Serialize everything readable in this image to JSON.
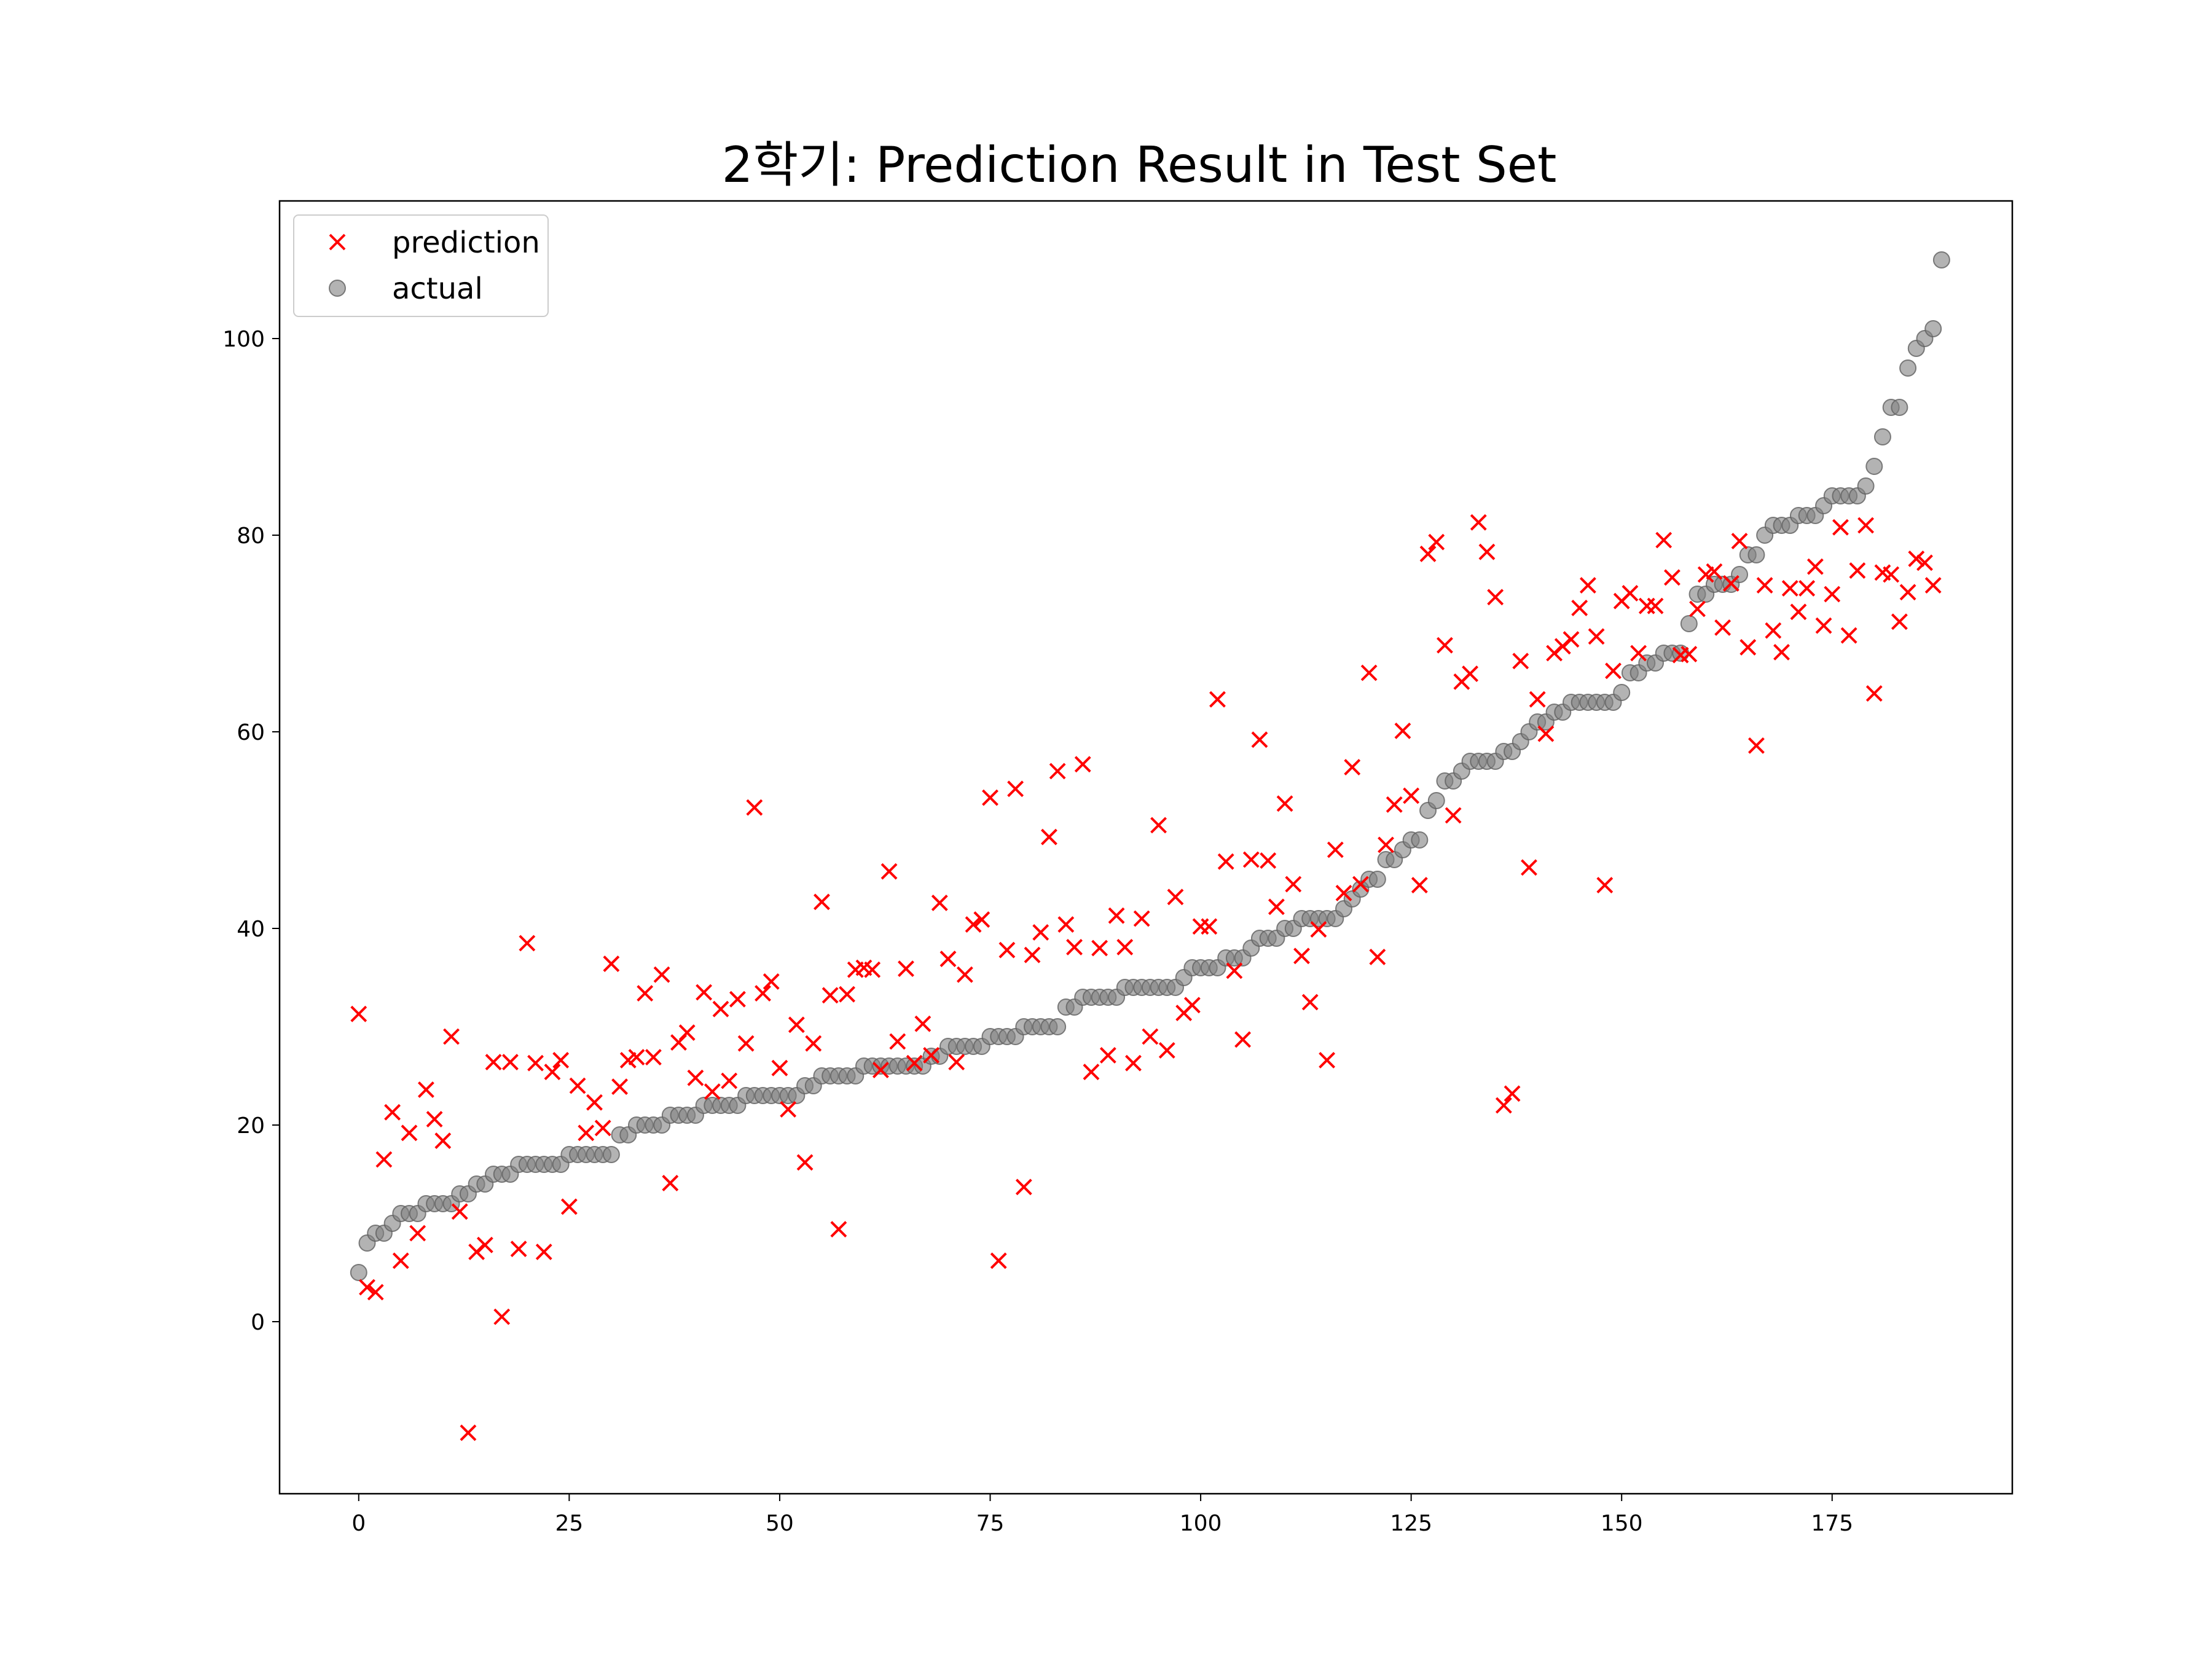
{
  "chart_data": {
    "type": "scatter",
    "title": "2학기: Prediction Result in Test Set",
    "xlabel": "",
    "ylabel": "",
    "xlim": [
      -9.4,
      196.4
    ],
    "ylim": [
      -17.5,
      114
    ],
    "xticks": [
      0,
      25,
      50,
      75,
      100,
      125,
      150,
      175
    ],
    "yticks": [
      0,
      20,
      40,
      60,
      80,
      100
    ],
    "grid": false,
    "legend_position": "top-left",
    "series": [
      {
        "name": "prediction",
        "marker": "x",
        "color": "#ff0000",
        "y": [
          31.3,
          3.5,
          3,
          16.5,
          21.3,
          6.2,
          19.2,
          9,
          23.6,
          20.6,
          18.4,
          29,
          11.2,
          -11.3,
          7.1,
          7.8,
          26.4,
          0.5,
          26.4,
          7.4,
          38.5,
          26.3,
          7.1,
          25.4,
          26.6,
          11.7,
          24,
          19.2,
          22.3,
          19.7,
          36.4,
          23.9,
          26.6,
          26.9,
          33.4,
          26.9,
          35.3,
          14.1,
          28.4,
          29.4,
          24.8,
          33.5,
          23.4,
          31.8,
          24.5,
          32.8,
          28.3,
          52.3,
          33.4,
          34.6,
          25.8,
          21.6,
          30.2,
          16.2,
          28.3,
          42.7,
          33.2,
          9.4,
          33.3,
          35.8,
          36,
          35.8,
          25.6,
          45.8,
          28.5,
          35.9,
          26.3,
          30.3,
          27.1,
          42.6,
          36.9,
          26.4,
          35.3,
          40.4,
          40.9,
          53.3,
          6.2,
          37.8,
          54.2,
          13.7,
          37.3,
          39.6,
          49.3,
          56,
          40.4,
          38.1,
          56.7,
          25.4,
          38,
          27.1,
          41.3,
          38.1,
          26.3,
          41,
          29,
          50.5,
          27.6,
          43.2,
          31.4,
          32.2,
          40.2,
          40.2,
          63.3,
          46.8,
          35.7,
          28.7,
          47,
          59.2,
          46.9,
          42.2,
          52.7,
          44.5,
          37.2,
          32.5,
          39.9,
          26.6,
          48,
          43.6,
          56.4,
          44.5,
          66,
          37.1,
          48.5,
          52.6,
          60.1,
          53.5,
          44.4,
          78.1,
          79.3,
          68.8,
          51.5,
          65.1,
          65.9,
          81.3,
          78.3,
          73.7,
          22,
          23.2,
          67.2,
          46.2,
          63.3,
          59.8,
          68,
          68.7,
          69.4,
          72.6,
          74.9,
          69.7,
          44.4,
          66.2,
          73.3,
          74.1,
          68,
          72.8,
          72.8,
          79.5,
          75.7,
          67.8,
          67.9,
          72.5,
          76,
          76.3,
          70.6,
          75.1,
          79.4,
          68.6,
          58.6,
          74.9,
          70.3,
          68.1,
          74.6,
          72.2,
          74.6,
          76.8,
          70.8,
          74,
          80.8,
          69.8,
          76.4,
          81,
          63.9,
          76.2,
          76,
          71.2,
          74.2,
          77.6,
          77.2,
          74.9
        ]
      },
      {
        "name": "actual",
        "marker": "o",
        "color": "#808080",
        "y": [
          5,
          8,
          9,
          9,
          10,
          11,
          11,
          11,
          12,
          12,
          12,
          12,
          13,
          13,
          14,
          14,
          15,
          15,
          15,
          16,
          16,
          16,
          16,
          16,
          16,
          17,
          17,
          17,
          17,
          17,
          17,
          19,
          19,
          20,
          20,
          20,
          20,
          21,
          21,
          21,
          21,
          22,
          22,
          22,
          22,
          22,
          23,
          23,
          23,
          23,
          23,
          23,
          23,
          24,
          24,
          25,
          25,
          25,
          25,
          25,
          26,
          26,
          26,
          26,
          26,
          26,
          26,
          26,
          27,
          27,
          28,
          28,
          28,
          28,
          28,
          29,
          29,
          29,
          29,
          30,
          30,
          30,
          30,
          30,
          32,
          32,
          33,
          33,
          33,
          33,
          33,
          34,
          34,
          34,
          34,
          34,
          34,
          34,
          35,
          36,
          36,
          36,
          36,
          37,
          37,
          37,
          38,
          39,
          39,
          39,
          40,
          40,
          41,
          41,
          41,
          41,
          41,
          42,
          43,
          44,
          45,
          45,
          47,
          47,
          48,
          49,
          49,
          52,
          53,
          55,
          55,
          56,
          57,
          57,
          57,
          57,
          58,
          58,
          59,
          60,
          61,
          61,
          62,
          62,
          63,
          63,
          63,
          63,
          63,
          63,
          64,
          66,
          66,
          67,
          67,
          68,
          68,
          68,
          71,
          74,
          74,
          75,
          75,
          75,
          76,
          78,
          78,
          80,
          81,
          81,
          81,
          82,
          82,
          82,
          83,
          84,
          84,
          84,
          84,
          85,
          87,
          90,
          93,
          93,
          97,
          99,
          100,
          101,
          108
        ]
      }
    ]
  }
}
